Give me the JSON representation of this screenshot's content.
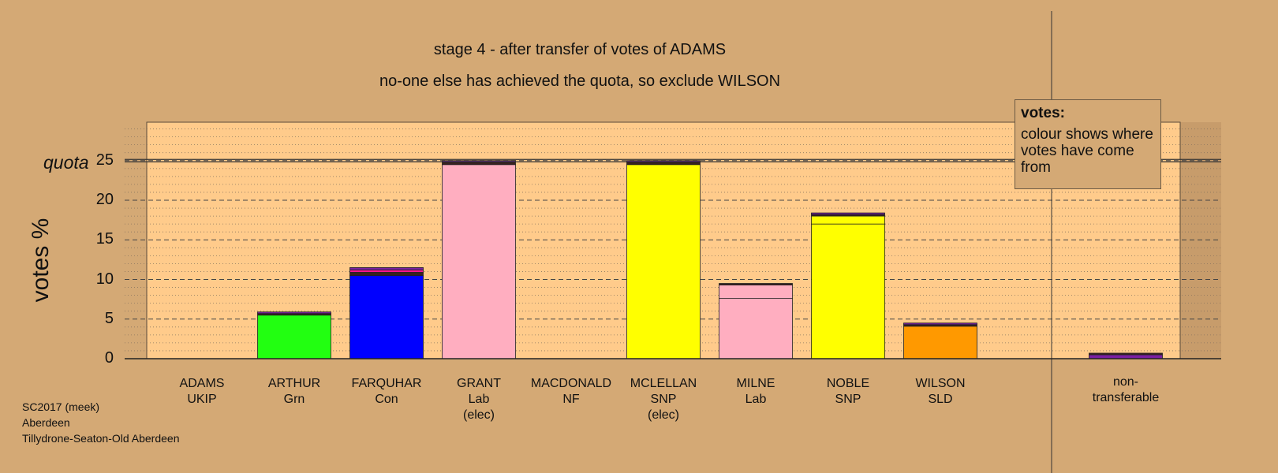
{
  "titles": {
    "line1": "stage 4 - after transfer of votes of ADAMS",
    "line2": "no-one else has achieved the quota, so exclude WILSON"
  },
  "footer": {
    "line1": "SC2017 (meek)",
    "line2": "Aberdeen",
    "line3": "Tillydrone-Seaton-Old Aberdeen"
  },
  "legend": {
    "title": "votes:",
    "text": "colour shows where votes have come from"
  },
  "colors": {
    "background": "#d4a975",
    "plot_area": "#ffcb8b",
    "ukip": "#7a1fa2",
    "green": "#22ff11",
    "con": "#0000ff",
    "lab": "#ffaec0",
    "snp": "#ffff00",
    "ld": "#ff9900",
    "dark": "#3a1f1f"
  },
  "chart_data": {
    "type": "bar",
    "title": "stage 4 - after transfer of votes of ADAMS",
    "subtitle": "no-one else has achieved the quota, so exclude WILSON",
    "ylabel": "votes %",
    "ylim": [
      0,
      30
    ],
    "yticks": [
      0,
      5,
      10,
      15,
      20,
      25
    ],
    "quota": 25,
    "quota_label": "quota",
    "grid": true,
    "legend_placement": "top-right",
    "categories": [
      {
        "name": "ADAMS",
        "party": "UKIP",
        "note": ""
      },
      {
        "name": "ARTHUR",
        "party": "Grn",
        "note": ""
      },
      {
        "name": "FARQUHAR",
        "party": "Con",
        "note": ""
      },
      {
        "name": "GRANT",
        "party": "Lab",
        "note": "(elec)"
      },
      {
        "name": "MACDONALD",
        "party": "NF",
        "note": ""
      },
      {
        "name": "MCLELLAN",
        "party": "SNP",
        "note": "(elec)"
      },
      {
        "name": "MILNE",
        "party": "Lab",
        "note": ""
      },
      {
        "name": "NOBLE",
        "party": "SNP",
        "note": ""
      },
      {
        "name": "WILSON",
        "party": "SLD",
        "note": ""
      },
      {
        "name": "non-",
        "party": "transferable",
        "note": ""
      }
    ],
    "stacks": [
      [],
      [
        {
          "value": 5.5,
          "color": "#22ff11"
        },
        {
          "value": 0.2,
          "color": "#3a1f1f"
        },
        {
          "value": 0.2,
          "color": "#7a1fa2"
        }
      ],
      [
        {
          "value": 10.5,
          "color": "#0000ff"
        },
        {
          "value": 0.4,
          "color": "#3a1f1f"
        },
        {
          "value": 0.3,
          "color": "#ff1493"
        },
        {
          "value": 0.3,
          "color": "#7a1fa2"
        }
      ],
      [
        {
          "value": 24.5,
          "color": "#ffaec0"
        },
        {
          "value": 0.3,
          "color": "#3a1f1f"
        },
        {
          "value": 0.2,
          "color": "#7a1fa2"
        }
      ],
      [],
      [
        {
          "value": 24.5,
          "color": "#ffff00"
        },
        {
          "value": 0.3,
          "color": "#3a1f1f"
        },
        {
          "value": 0.2,
          "color": "#7a1fa2"
        }
      ],
      [
        {
          "value": 7.6,
          "color": "#ffaec0"
        },
        {
          "value": 1.7,
          "color": "#ffaec0"
        },
        {
          "value": 0.2,
          "color": "#3a1f1f"
        }
      ],
      [
        {
          "value": 17.0,
          "color": "#ffff00"
        },
        {
          "value": 1.0,
          "color": "#ffff00"
        },
        {
          "value": 0.2,
          "color": "#3a1f1f"
        },
        {
          "value": 0.2,
          "color": "#7a1fa2"
        }
      ],
      [
        {
          "value": 4.1,
          "color": "#ff9900"
        },
        {
          "value": 0.2,
          "color": "#3a1f1f"
        },
        {
          "value": 0.2,
          "color": "#7a1fa2"
        }
      ],
      [
        {
          "value": 0.5,
          "color": "#7a1fa2"
        },
        {
          "value": 0.2,
          "color": "#3a1f1f"
        }
      ]
    ]
  }
}
